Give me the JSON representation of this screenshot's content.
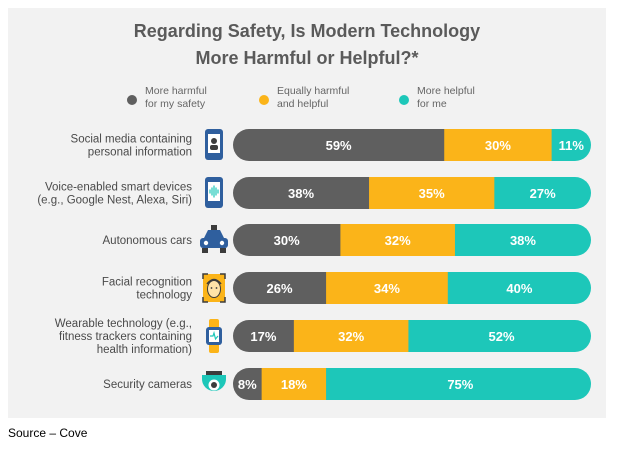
{
  "chart_data": {
    "type": "bar",
    "orientation": "horizontal",
    "stacked": true,
    "normalized_percent": true,
    "title_lines": [
      "Regarding Safety, Is Modern Technology",
      "More Harmful or Helpful?*"
    ],
    "legend": [
      {
        "lines": [
          "More harmful",
          "for my safety"
        ],
        "color": "#5f5f5f"
      },
      {
        "lines": [
          "Equally harmful",
          "and helpful"
        ],
        "color": "#fbb419"
      },
      {
        "lines": [
          "More helpful",
          "for me"
        ],
        "color": "#1dc7b9"
      }
    ],
    "series": [
      {
        "name": "More harmful for my safety",
        "color": "#5f5f5f",
        "values": [
          59,
          38,
          30,
          26,
          17,
          8
        ]
      },
      {
        "name": "Equally harmful and helpful",
        "color": "#fbb419",
        "values": [
          30,
          35,
          32,
          34,
          32,
          18
        ]
      },
      {
        "name": "More helpful for me",
        "color": "#1dc7b9",
        "values": [
          11,
          27,
          38,
          40,
          52,
          75
        ]
      }
    ],
    "categories": [
      {
        "lines": [
          "Social media containing",
          "personal information"
        ],
        "icon": "phone-social-icon"
      },
      {
        "lines": [
          "Voice-enabled smart devices",
          "(e.g., Google Nest, Alexa, Siri)"
        ],
        "icon": "voice-device-icon"
      },
      {
        "lines": [
          "Autonomous cars"
        ],
        "icon": "car-icon"
      },
      {
        "lines": [
          "Facial recognition",
          "technology"
        ],
        "icon": "face-scan-icon"
      },
      {
        "lines": [
          "Wearable technology (e.g.,",
          "fitness trackers containing",
          "health information)"
        ],
        "icon": "wearable-icon"
      },
      {
        "lines": [
          "Security cameras"
        ],
        "icon": "security-camera-icon"
      }
    ],
    "value_suffix": "%",
    "xlim": [
      0,
      100
    ],
    "grid": false
  },
  "source": "Source – Cove",
  "colors": {
    "title": "#5a5a5a",
    "label": "#4a4a4a",
    "panel": "#f2f2f2"
  }
}
